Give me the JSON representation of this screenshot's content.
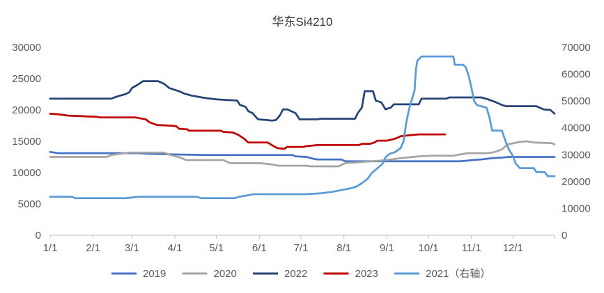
{
  "chart_data": {
    "type": "line",
    "title": "华东Si4210",
    "x_ticks": [
      "1/1",
      "2/1",
      "3/1",
      "4/1",
      "5/1",
      "6/1",
      "7/1",
      "8/1",
      "9/1",
      "10/1",
      "11/1",
      "12/1"
    ],
    "x_range": [
      "1/1",
      "12/31"
    ],
    "y_left": {
      "range": [
        0,
        30000
      ],
      "ticks": [
        0,
        5000,
        10000,
        15000,
        20000,
        25000,
        30000
      ]
    },
    "y_right": {
      "range": [
        0,
        70000
      ],
      "ticks": [
        0,
        10000,
        20000,
        30000,
        40000,
        50000,
        60000,
        70000
      ]
    },
    "grid": false,
    "legend_position": "bottom",
    "series": [
      {
        "name": "2019",
        "axis": "left",
        "color": "#4472C4",
        "points": [
          [
            "1/1",
            13300
          ],
          [
            "1/7",
            13100
          ],
          [
            "3/6",
            13100
          ],
          [
            "3/13",
            13000
          ],
          [
            "4/1",
            12900
          ],
          [
            "4/25",
            12800
          ],
          [
            "6/25",
            12800
          ],
          [
            "6/27",
            12600
          ],
          [
            "7/5",
            12500
          ],
          [
            "7/10",
            12200
          ],
          [
            "7/13",
            12100
          ],
          [
            "7/30",
            12100
          ],
          [
            "8/2",
            11800
          ],
          [
            "10/24",
            11800
          ],
          [
            "10/29",
            11900
          ],
          [
            "11/1",
            12000
          ],
          [
            "11/8",
            12100
          ],
          [
            "11/16",
            12300
          ],
          [
            "11/23",
            12400
          ],
          [
            "11/28",
            12500
          ],
          [
            "12/31",
            12500
          ]
        ]
      },
      {
        "name": "2020",
        "axis": "left",
        "color": "#A5A5A5",
        "points": [
          [
            "1/1",
            12500
          ],
          [
            "2/11",
            12500
          ],
          [
            "2/14",
            12800
          ],
          [
            "2/21",
            13000
          ],
          [
            "2/27",
            13200
          ],
          [
            "3/24",
            13200
          ],
          [
            "3/29",
            12800
          ],
          [
            "4/5",
            12400
          ],
          [
            "4/9",
            12000
          ],
          [
            "5/6",
            12000
          ],
          [
            "5/11",
            11500
          ],
          [
            "6/2",
            11500
          ],
          [
            "6/10",
            11300
          ],
          [
            "6/15",
            11100
          ],
          [
            "7/5",
            11100
          ],
          [
            "7/8",
            11000
          ],
          [
            "7/28",
            11000
          ],
          [
            "8/2",
            11500
          ],
          [
            "8/14",
            11700
          ],
          [
            "8/27",
            11900
          ],
          [
            "9/4",
            12100
          ],
          [
            "9/11",
            12300
          ],
          [
            "9/24",
            12600
          ],
          [
            "10/4",
            12700
          ],
          [
            "10/19",
            12700
          ],
          [
            "10/24",
            12900
          ],
          [
            "10/29",
            13100
          ],
          [
            "11/13",
            13100
          ],
          [
            "11/18",
            13300
          ],
          [
            "11/23",
            13700
          ],
          [
            "11/27",
            14500
          ],
          [
            "12/6",
            14900
          ],
          [
            "12/11",
            15000
          ],
          [
            "12/16",
            14800
          ],
          [
            "12/29",
            14700
          ],
          [
            "12/31",
            14500
          ]
        ]
      },
      {
        "name": "2022",
        "axis": "left",
        "color": "#264478",
        "points": [
          [
            "1/1",
            21800
          ],
          [
            "2/14",
            21800
          ],
          [
            "2/19",
            22200
          ],
          [
            "2/24",
            22500
          ],
          [
            "2/27",
            22800
          ],
          [
            "3/1",
            23500
          ],
          [
            "3/5",
            24000
          ],
          [
            "3/9",
            24600
          ],
          [
            "3/20",
            24600
          ],
          [
            "3/24",
            24200
          ],
          [
            "3/28",
            23500
          ],
          [
            "4/1",
            23200
          ],
          [
            "4/4",
            23000
          ],
          [
            "4/8",
            22600
          ],
          [
            "4/13",
            22300
          ],
          [
            "4/18",
            22100
          ],
          [
            "4/23",
            21900
          ],
          [
            "5/1",
            21700
          ],
          [
            "5/8",
            21600
          ],
          [
            "5/16",
            21500
          ],
          [
            "5/18",
            20800
          ],
          [
            "5/22",
            20500
          ],
          [
            "5/24",
            19800
          ],
          [
            "5/27",
            19500
          ],
          [
            "5/31",
            18500
          ],
          [
            "6/6",
            18400
          ],
          [
            "6/10",
            18300
          ],
          [
            "6/13",
            18400
          ],
          [
            "6/16",
            19200
          ],
          [
            "6/18",
            20100
          ],
          [
            "6/21",
            20100
          ],
          [
            "6/24",
            19800
          ],
          [
            "6/27",
            19500
          ],
          [
            "6/30",
            18500
          ],
          [
            "7/13",
            18500
          ],
          [
            "7/15",
            18600
          ],
          [
            "8/9",
            18600
          ],
          [
            "8/11",
            19500
          ],
          [
            "8/14",
            20400
          ],
          [
            "8/16",
            23000
          ],
          [
            "8/22",
            23000
          ],
          [
            "8/24",
            21500
          ],
          [
            "8/28",
            21200
          ],
          [
            "8/31",
            20100
          ],
          [
            "9/4",
            20400
          ],
          [
            "9/6",
            20900
          ],
          [
            "9/24",
            20900
          ],
          [
            "9/26",
            21800
          ],
          [
            "10/14",
            21800
          ],
          [
            "10/16",
            22000
          ],
          [
            "11/8",
            22000
          ],
          [
            "11/13",
            21700
          ],
          [
            "11/19",
            21200
          ],
          [
            "11/23",
            20800
          ],
          [
            "11/26",
            20600
          ],
          [
            "12/18",
            20600
          ],
          [
            "12/23",
            20100
          ],
          [
            "12/28",
            20000
          ],
          [
            "12/31",
            19400
          ]
        ]
      },
      {
        "name": "2023",
        "axis": "left",
        "color": "#C00000",
        "points": [
          [
            "1/1",
            19400
          ],
          [
            "1/7",
            19300
          ],
          [
            "1/14",
            19100
          ],
          [
            "1/25",
            19000
          ],
          [
            "2/4",
            18900
          ],
          [
            "2/6",
            18800
          ],
          [
            "3/4",
            18800
          ],
          [
            "3/6",
            18700
          ],
          [
            "3/11",
            18500
          ],
          [
            "3/14",
            18000
          ],
          [
            "3/19",
            17600
          ],
          [
            "3/29",
            17500
          ],
          [
            "4/2",
            17400
          ],
          [
            "4/4",
            17000
          ],
          [
            "4/10",
            16900
          ],
          [
            "4/11",
            16700
          ],
          [
            "5/4",
            16700
          ],
          [
            "5/6",
            16500
          ],
          [
            "5/13",
            16400
          ],
          [
            "5/17",
            16000
          ],
          [
            "5/21",
            15400
          ],
          [
            "5/24",
            14800
          ],
          [
            "6/7",
            14800
          ],
          [
            "6/10",
            14400
          ],
          [
            "6/14",
            13900
          ],
          [
            "6/19",
            13800
          ],
          [
            "6/21",
            14100
          ],
          [
            "7/3",
            14100
          ],
          [
            "7/4",
            14200
          ],
          [
            "7/13",
            14400
          ],
          [
            "8/12",
            14400
          ],
          [
            "8/14",
            14600
          ],
          [
            "8/20",
            14600
          ],
          [
            "8/23",
            14800
          ],
          [
            "8/25",
            15100
          ],
          [
            "9/1",
            15100
          ],
          [
            "9/5",
            15300
          ],
          [
            "9/8",
            15500
          ],
          [
            "9/11",
            15800
          ],
          [
            "9/19",
            16000
          ],
          [
            "9/24",
            16100
          ],
          [
            "10/13",
            16100
          ]
        ]
      },
      {
        "name": "2021（右轴）",
        "axis": "right",
        "color": "#5B9BD5",
        "points": [
          [
            "1/1",
            14300
          ],
          [
            "1/17",
            14300
          ],
          [
            "1/19",
            13800
          ],
          [
            "2/24",
            13800
          ],
          [
            "2/28",
            14000
          ],
          [
            "3/6",
            14300
          ],
          [
            "4/17",
            14300
          ],
          [
            "4/20",
            13800
          ],
          [
            "5/14",
            13800
          ],
          [
            "5/17",
            14300
          ],
          [
            "5/23",
            14800
          ],
          [
            "5/28",
            15300
          ],
          [
            "7/5",
            15300
          ],
          [
            "7/15",
            15600
          ],
          [
            "7/23",
            16100
          ],
          [
            "7/31",
            16900
          ],
          [
            "8/5",
            17400
          ],
          [
            "8/10",
            18100
          ],
          [
            "8/14",
            19400
          ],
          [
            "8/18",
            21000
          ],
          [
            "8/21",
            23100
          ],
          [
            "8/25",
            24900
          ],
          [
            "8/29",
            26700
          ],
          [
            "8/31",
            29000
          ],
          [
            "9/3",
            30300
          ],
          [
            "9/7",
            31000
          ],
          [
            "9/11",
            32500
          ],
          [
            "9/13",
            35000
          ],
          [
            "9/15",
            42000
          ],
          [
            "9/17",
            47000
          ],
          [
            "9/19",
            50500
          ],
          [
            "9/21",
            54000
          ],
          [
            "9/22",
            62000
          ],
          [
            "9/23",
            65000
          ],
          [
            "9/26",
            66600
          ],
          [
            "10/19",
            66600
          ],
          [
            "10/20",
            63500
          ],
          [
            "10/26",
            63500
          ],
          [
            "10/28",
            62500
          ],
          [
            "10/30",
            59500
          ],
          [
            "11/1",
            55000
          ],
          [
            "11/3",
            50000
          ],
          [
            "11/5",
            48500
          ],
          [
            "11/12",
            47500
          ],
          [
            "11/14",
            44000
          ],
          [
            "11/16",
            39000
          ],
          [
            "11/23",
            39000
          ],
          [
            "11/26",
            34500
          ],
          [
            "11/28",
            32000
          ],
          [
            "12/1",
            29500
          ],
          [
            "12/3",
            26700
          ],
          [
            "12/6",
            25000
          ],
          [
            "12/16",
            25000
          ],
          [
            "12/18",
            23500
          ],
          [
            "12/24",
            23500
          ],
          [
            "12/26",
            22000
          ],
          [
            "12/31",
            22000
          ]
        ]
      }
    ]
  }
}
